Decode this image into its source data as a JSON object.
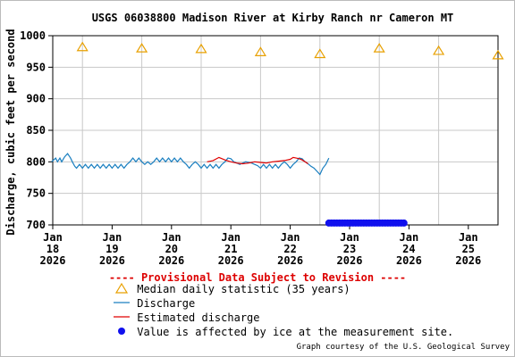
{
  "chart_data": {
    "type": "line",
    "title": "USGS 06038800 Madison River at Kirby Ranch nr Cameron MT",
    "ylabel": "Discharge, cubic feet per second",
    "xlabel": "",
    "ylim": [
      700,
      1000
    ],
    "yticks": [
      "700",
      "750",
      "800",
      "850",
      "900",
      "950",
      "1000"
    ],
    "xlim": [
      18,
      25.5
    ],
    "x_ticks": [
      {
        "day": 18,
        "month": "Jan",
        "date": "18",
        "year": "2026"
      },
      {
        "day": 19,
        "month": "Jan",
        "date": "19",
        "year": "2026"
      },
      {
        "day": 20,
        "month": "Jan",
        "date": "20",
        "year": "2026"
      },
      {
        "day": 21,
        "month": "Jan",
        "date": "21",
        "year": "2026"
      },
      {
        "day": 22,
        "month": "Jan",
        "date": "22",
        "year": "2026"
      },
      {
        "day": 23,
        "month": "Jan",
        "date": "23",
        "year": "2026"
      },
      {
        "day": 24,
        "month": "Jan",
        "date": "24",
        "year": "2026"
      },
      {
        "day": 25,
        "month": "Jan",
        "date": "25",
        "year": "2026"
      }
    ],
    "grid": true,
    "series": [
      {
        "name": "Median daily statistic (35 years)",
        "kind": "triangle",
        "color": "#e8a000",
        "x": [
          18.5,
          19.5,
          20.5,
          21.5,
          22.5,
          23.5,
          24.5,
          25.5
        ],
        "y": [
          982,
          980,
          979,
          974,
          971,
          980,
          976,
          969
        ]
      },
      {
        "name": "Discharge",
        "kind": "line",
        "color": "#1a7fc0",
        "x": [
          17.98,
          18.05,
          18.08,
          18.12,
          18.15,
          18.2,
          18.25,
          18.3,
          18.33,
          18.37,
          18.4,
          18.45,
          18.5,
          18.55,
          18.6,
          18.65,
          18.7,
          18.75,
          18.8,
          18.85,
          18.9,
          18.95,
          19.0,
          19.05,
          19.1,
          19.15,
          19.2,
          19.25,
          19.3,
          19.35,
          19.4,
          19.45,
          19.5,
          19.55,
          19.6,
          19.65,
          19.7,
          19.75,
          19.8,
          19.85,
          19.9,
          19.95,
          20.0,
          20.05,
          20.1,
          20.15,
          20.2,
          20.25,
          20.3,
          20.35,
          20.4,
          20.45,
          20.5,
          20.55,
          20.6,
          20.65,
          20.7,
          20.75,
          20.8,
          20.85,
          20.9,
          20.95,
          21.0,
          21.05,
          21.1,
          21.15,
          21.2,
          21.25,
          21.3,
          21.35,
          21.4,
          21.45,
          21.5,
          21.55,
          21.6,
          21.65,
          21.7,
          21.75,
          21.8,
          21.85,
          21.9,
          21.95,
          22.0,
          22.05,
          22.1,
          22.15,
          22.2,
          22.25,
          22.3,
          22.35,
          22.4,
          22.45,
          22.5,
          22.55,
          22.6,
          22.65
        ],
        "y": [
          800,
          806,
          800,
          806,
          800,
          808,
          813,
          806,
          800,
          793,
          790,
          796,
          790,
          796,
          790,
          796,
          790,
          796,
          790,
          796,
          790,
          796,
          790,
          796,
          790,
          796,
          790,
          796,
          800,
          806,
          800,
          806,
          800,
          796,
          800,
          796,
          800,
          806,
          800,
          806,
          800,
          806,
          800,
          806,
          800,
          806,
          800,
          796,
          790,
          796,
          800,
          796,
          790,
          796,
          790,
          796,
          790,
          796,
          790,
          796,
          800,
          806,
          805,
          800,
          798,
          796,
          798,
          800,
          799,
          798,
          796,
          794,
          790,
          796,
          790,
          796,
          790,
          796,
          790,
          796,
          800,
          796,
          790,
          796,
          800,
          806,
          805,
          800,
          797,
          793,
          790,
          785,
          780,
          790,
          796,
          806
        ]
      },
      {
        "name": "Estimated discharge",
        "kind": "line",
        "color": "#e00000",
        "x": [
          20.6,
          20.7,
          20.8,
          20.9,
          21.0,
          21.1,
          21.2,
          21.3,
          21.4,
          21.5,
          21.6,
          21.7,
          21.8,
          21.9,
          22.0,
          22.05,
          22.1,
          22.15,
          22.2,
          22.25,
          22.3
        ],
        "y": [
          800,
          802,
          807,
          803,
          800,
          798,
          797,
          798,
          800,
          799,
          798,
          800,
          801,
          802,
          804,
          807,
          806,
          805,
          803,
          800,
          797
        ]
      },
      {
        "name": "Value is affected by ice at the measurement site.",
        "kind": "ice",
        "color": "#1010ee",
        "x_start": 22.65,
        "x_end": 23.95,
        "y": 703
      }
    ]
  },
  "provisional_text": "---- Provisional Data Subject to Revision ----",
  "legend": [
    {
      "symbol": "triangle",
      "color": "#e8a000",
      "label": "Median daily statistic (35 years)"
    },
    {
      "symbol": "line",
      "color": "#1a7fc0",
      "label": "Discharge"
    },
    {
      "symbol": "line",
      "color": "#e00000",
      "label": "Estimated discharge"
    },
    {
      "symbol": "dot",
      "color": "#1010ee",
      "label": "Value is affected by ice at the measurement site."
    }
  ],
  "credit": "Graph courtesy of the U.S. Geological Survey"
}
